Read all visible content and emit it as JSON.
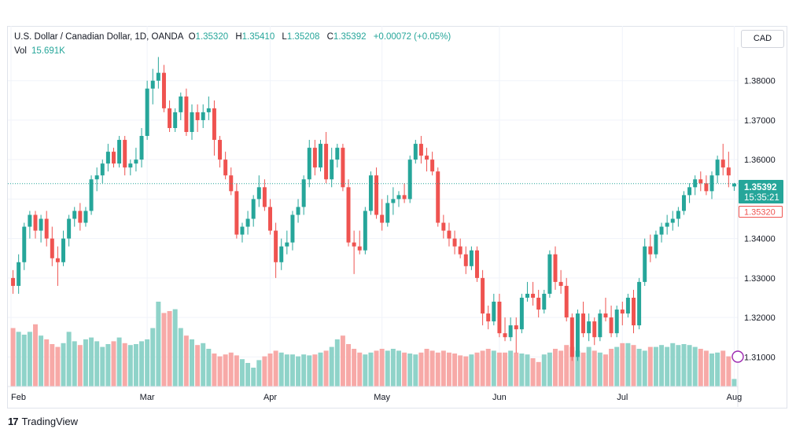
{
  "header": {
    "symbol": "U.S. Dollar / Canadian Dollar, 1D, OANDA",
    "o_label": "O",
    "o_value": "1.35320",
    "h_label": "H",
    "h_value": "1.35410",
    "l_label": "L",
    "l_value": "1.35208",
    "c_label": "C",
    "c_value": "1.35392",
    "change": "+0.00072 (+0.05%)"
  },
  "volume": {
    "label": "Vol",
    "value": "15.691K"
  },
  "currency_button": "CAD",
  "last_price": {
    "price": "1.35392",
    "countdown": "15:35:21",
    "open": "1.35320"
  },
  "branding": "TradingView",
  "colors": {
    "up": "#26a69a",
    "down": "#ef5350",
    "up_vol": "#8fd3c9",
    "down_vol": "#f7a9a7"
  },
  "chart_data": {
    "type": "candlestick",
    "ylim": [
      1.3025,
      1.3885
    ],
    "y_ticks": [
      "1.38000",
      "1.37000",
      "1.36000",
      "1.35000",
      "1.34000",
      "1.33000",
      "1.32000",
      "1.31000"
    ],
    "x_ticks": [
      "Feb",
      "Mar",
      "Apr",
      "May",
      "Jun",
      "Jul",
      "Aug"
    ],
    "grid": true,
    "candles": [
      [
        1.33,
        1.332,
        1.326,
        1.328
      ],
      [
        1.328,
        1.336,
        1.326,
        1.334
      ],
      [
        1.334,
        1.344,
        1.332,
        1.343
      ],
      [
        1.343,
        1.347,
        1.34,
        1.346
      ],
      [
        1.346,
        1.347,
        1.34,
        1.342
      ],
      [
        1.342,
        1.346,
        1.339,
        1.345
      ],
      [
        1.345,
        1.347,
        1.338,
        1.34
      ],
      [
        1.34,
        1.343,
        1.333,
        1.335
      ],
      [
        1.335,
        1.338,
        1.328,
        1.334
      ],
      [
        1.334,
        1.342,
        1.333,
        1.34
      ],
      [
        1.34,
        1.346,
        1.338,
        1.345
      ],
      [
        1.345,
        1.348,
        1.343,
        1.347
      ],
      [
        1.347,
        1.349,
        1.342,
        1.344
      ],
      [
        1.344,
        1.348,
        1.343,
        1.347
      ],
      [
        1.347,
        1.356,
        1.346,
        1.355
      ],
      [
        1.355,
        1.358,
        1.352,
        1.356
      ],
      [
        1.356,
        1.36,
        1.354,
        1.359
      ],
      [
        1.359,
        1.364,
        1.357,
        1.362
      ],
      [
        1.362,
        1.363,
        1.358,
        1.359
      ],
      [
        1.359,
        1.366,
        1.358,
        1.365
      ],
      [
        1.365,
        1.366,
        1.356,
        1.358
      ],
      [
        1.358,
        1.36,
        1.356,
        1.359
      ],
      [
        1.359,
        1.363,
        1.357,
        1.36
      ],
      [
        1.36,
        1.368,
        1.358,
        1.366
      ],
      [
        1.366,
        1.38,
        1.365,
        1.378
      ],
      [
        1.378,
        1.383,
        1.374,
        1.38
      ],
      [
        1.38,
        1.386,
        1.378,
        1.382
      ],
      [
        1.382,
        1.384,
        1.372,
        1.373
      ],
      [
        1.373,
        1.375,
        1.367,
        1.368
      ],
      [
        1.368,
        1.373,
        1.367,
        1.372
      ],
      [
        1.372,
        1.377,
        1.37,
        1.376
      ],
      [
        1.376,
        1.378,
        1.366,
        1.367
      ],
      [
        1.367,
        1.374,
        1.365,
        1.372
      ],
      [
        1.372,
        1.374,
        1.367,
        1.37
      ],
      [
        1.37,
        1.374,
        1.368,
        1.372
      ],
      [
        1.372,
        1.376,
        1.37,
        1.373
      ],
      [
        1.373,
        1.375,
        1.361,
        1.365
      ],
      [
        1.365,
        1.366,
        1.358,
        1.36
      ],
      [
        1.36,
        1.362,
        1.355,
        1.356
      ],
      [
        1.356,
        1.358,
        1.351,
        1.352
      ],
      [
        1.352,
        1.354,
        1.34,
        1.341
      ],
      [
        1.341,
        1.344,
        1.339,
        1.343
      ],
      [
        1.343,
        1.347,
        1.341,
        1.345
      ],
      [
        1.345,
        1.351,
        1.343,
        1.35
      ],
      [
        1.35,
        1.356,
        1.348,
        1.353
      ],
      [
        1.353,
        1.355,
        1.347,
        1.348
      ],
      [
        1.348,
        1.35,
        1.341,
        1.342
      ],
      [
        1.342,
        1.344,
        1.33,
        1.334
      ],
      [
        1.334,
        1.34,
        1.332,
        1.338
      ],
      [
        1.338,
        1.342,
        1.336,
        1.339
      ],
      [
        1.339,
        1.347,
        1.337,
        1.346
      ],
      [
        1.346,
        1.35,
        1.344,
        1.348
      ],
      [
        1.348,
        1.356,
        1.346,
        1.355
      ],
      [
        1.355,
        1.365,
        1.353,
        1.363
      ],
      [
        1.363,
        1.365,
        1.356,
        1.358
      ],
      [
        1.358,
        1.365,
        1.357,
        1.364
      ],
      [
        1.364,
        1.367,
        1.354,
        1.355
      ],
      [
        1.355,
        1.363,
        1.353,
        1.36
      ],
      [
        1.36,
        1.364,
        1.358,
        1.363
      ],
      [
        1.363,
        1.364,
        1.352,
        1.353
      ],
      [
        1.353,
        1.355,
        1.338,
        1.339
      ],
      [
        1.339,
        1.342,
        1.331,
        1.338
      ],
      [
        1.338,
        1.342,
        1.336,
        1.337
      ],
      [
        1.337,
        1.348,
        1.336,
        1.347
      ],
      [
        1.347,
        1.357,
        1.346,
        1.356
      ],
      [
        1.356,
        1.358,
        1.345,
        1.346
      ],
      [
        1.346,
        1.35,
        1.342,
        1.344
      ],
      [
        1.344,
        1.351,
        1.343,
        1.349
      ],
      [
        1.349,
        1.353,
        1.346,
        1.35
      ],
      [
        1.35,
        1.352,
        1.348,
        1.351
      ],
      [
        1.351,
        1.354,
        1.349,
        1.35
      ],
      [
        1.35,
        1.361,
        1.349,
        1.36
      ],
      [
        1.36,
        1.365,
        1.359,
        1.364
      ],
      [
        1.364,
        1.366,
        1.359,
        1.361
      ],
      [
        1.361,
        1.363,
        1.357,
        1.36
      ],
      [
        1.36,
        1.362,
        1.356,
        1.357
      ],
      [
        1.357,
        1.358,
        1.343,
        1.344
      ],
      [
        1.344,
        1.346,
        1.34,
        1.342
      ],
      [
        1.342,
        1.344,
        1.338,
        1.34
      ],
      [
        1.34,
        1.342,
        1.336,
        1.338
      ],
      [
        1.338,
        1.34,
        1.335,
        1.336
      ],
      [
        1.336,
        1.338,
        1.331,
        1.333
      ],
      [
        1.333,
        1.338,
        1.332,
        1.337
      ],
      [
        1.337,
        1.338,
        1.329,
        1.33
      ],
      [
        1.33,
        1.332,
        1.318,
        1.321
      ],
      [
        1.321,
        1.323,
        1.317,
        1.319
      ],
      [
        1.319,
        1.326,
        1.318,
        1.324
      ],
      [
        1.324,
        1.326,
        1.315,
        1.316
      ],
      [
        1.316,
        1.32,
        1.314,
        1.315
      ],
      [
        1.315,
        1.32,
        1.314,
        1.318
      ],
      [
        1.318,
        1.32,
        1.311,
        1.317
      ],
      [
        1.317,
        1.326,
        1.316,
        1.325
      ],
      [
        1.325,
        1.329,
        1.324,
        1.326
      ],
      [
        1.326,
        1.329,
        1.323,
        1.325
      ],
      [
        1.325,
        1.327,
        1.32,
        1.322
      ],
      [
        1.322,
        1.327,
        1.321,
        1.326
      ],
      [
        1.326,
        1.337,
        1.325,
        1.336
      ],
      [
        1.336,
        1.338,
        1.327,
        1.329
      ],
      [
        1.329,
        1.332,
        1.326,
        1.328
      ],
      [
        1.328,
        1.33,
        1.319,
        1.32
      ],
      [
        1.32,
        1.321,
        1.309,
        1.31
      ],
      [
        1.31,
        1.322,
        1.309,
        1.321
      ],
      [
        1.321,
        1.324,
        1.315,
        1.316
      ],
      [
        1.316,
        1.321,
        1.314,
        1.319
      ],
      [
        1.319,
        1.32,
        1.313,
        1.315
      ],
      [
        1.315,
        1.322,
        1.314,
        1.321
      ],
      [
        1.321,
        1.325,
        1.319,
        1.32
      ],
      [
        1.32,
        1.323,
        1.315,
        1.316
      ],
      [
        1.316,
        1.323,
        1.315,
        1.322
      ],
      [
        1.322,
        1.324,
        1.318,
        1.321
      ],
      [
        1.321,
        1.326,
        1.32,
        1.325
      ],
      [
        1.325,
        1.327,
        1.316,
        1.318
      ],
      [
        1.318,
        1.33,
        1.317,
        1.329
      ],
      [
        1.329,
        1.34,
        1.328,
        1.338
      ],
      [
        1.338,
        1.341,
        1.334,
        1.336
      ],
      [
        1.336,
        1.342,
        1.335,
        1.341
      ],
      [
        1.341,
        1.344,
        1.339,
        1.343
      ],
      [
        1.343,
        1.346,
        1.341,
        1.344
      ],
      [
        1.344,
        1.347,
        1.342,
        1.345
      ],
      [
        1.345,
        1.348,
        1.343,
        1.347
      ],
      [
        1.347,
        1.352,
        1.346,
        1.351
      ],
      [
        1.351,
        1.354,
        1.349,
        1.353
      ],
      [
        1.353,
        1.356,
        1.351,
        1.355
      ],
      [
        1.355,
        1.357,
        1.352,
        1.354
      ],
      [
        1.354,
        1.356,
        1.351,
        1.352
      ],
      [
        1.352,
        1.357,
        1.35,
        1.356
      ],
      [
        1.356,
        1.361,
        1.354,
        1.36
      ],
      [
        1.36,
        1.364,
        1.356,
        1.358
      ],
      [
        1.358,
        1.362,
        1.353,
        1.356
      ],
      [
        1.3532,
        1.3541,
        1.35208,
        1.35392
      ]
    ],
    "volume": [
      0.62,
      0.58,
      0.55,
      0.58,
      0.66,
      0.54,
      0.5,
      0.45,
      0.42,
      0.46,
      0.58,
      0.48,
      0.44,
      0.5,
      0.52,
      0.48,
      0.42,
      0.45,
      0.48,
      0.52,
      0.46,
      0.44,
      0.45,
      0.48,
      0.5,
      0.62,
      0.9,
      0.78,
      0.8,
      0.82,
      0.62,
      0.54,
      0.5,
      0.44,
      0.46,
      0.4,
      0.35,
      0.32,
      0.34,
      0.36,
      0.33,
      0.29,
      0.25,
      0.2,
      0.28,
      0.32,
      0.35,
      0.38,
      0.36,
      0.34,
      0.34,
      0.32,
      0.34,
      0.33,
      0.34,
      0.36,
      0.38,
      0.42,
      0.5,
      0.54,
      0.45,
      0.4,
      0.36,
      0.34,
      0.36,
      0.38,
      0.4,
      0.38,
      0.4,
      0.38,
      0.36,
      0.35,
      0.34,
      0.36,
      0.4,
      0.38,
      0.36,
      0.38,
      0.36,
      0.35,
      0.33,
      0.32,
      0.34,
      0.36,
      0.38,
      0.4,
      0.38,
      0.36,
      0.36,
      0.38,
      0.36,
      0.35,
      0.34,
      0.3,
      0.26,
      0.34,
      0.36,
      0.4,
      0.38,
      0.44,
      0.42,
      0.38,
      0.36,
      0.42,
      0.38,
      0.36,
      0.34,
      0.4,
      0.42,
      0.46,
      0.46,
      0.44,
      0.4,
      0.38,
      0.42,
      0.42,
      0.44,
      0.42,
      0.46,
      0.44,
      0.45,
      0.44,
      0.42,
      0.4,
      0.38,
      0.35,
      0.36,
      0.38,
      0.32,
      0.08
    ]
  }
}
